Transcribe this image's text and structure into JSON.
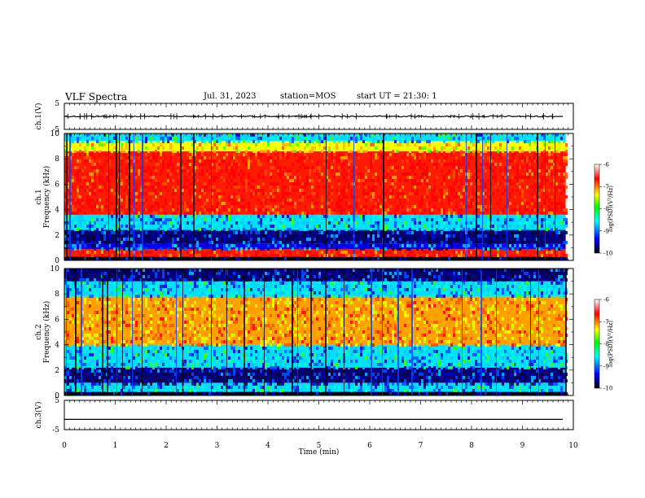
{
  "header": {
    "title": "VLF Spectra",
    "date": "Jul. 31, 2023",
    "station": "station=MOS",
    "start": "start UT = 21:30: 1"
  },
  "chart_data": [
    {
      "type": "line",
      "name": "ch1-waveform",
      "ylabel": "ch.1(V)",
      "ylim": [
        -5,
        5
      ],
      "yticks": [
        "5",
        "-5"
      ],
      "baseline_v": 0.0,
      "xlim": [
        0,
        10
      ]
    },
    {
      "type": "heatmap",
      "name": "ch1-spectrogram",
      "ylabel": "ch.1\nFrequency (kHz)",
      "ylim": [
        0,
        10
      ],
      "yticks": [
        "0",
        "2",
        "4",
        "6",
        "8",
        "10"
      ],
      "xlim": [
        0,
        9.85
      ],
      "intensity_bands": [
        {
          "f_low": 0.0,
          "f_high": 0.3,
          "level": "black"
        },
        {
          "f_low": 0.3,
          "f_high": 0.9,
          "level": "red"
        },
        {
          "f_low": 0.9,
          "f_high": 1.3,
          "level": "blue"
        },
        {
          "f_low": 1.3,
          "f_high": 2.4,
          "level": "dark blue"
        },
        {
          "f_low": 2.4,
          "f_high": 3.6,
          "level": "cyan"
        },
        {
          "f_low": 3.6,
          "f_high": 8.6,
          "level": "red"
        },
        {
          "f_low": 8.6,
          "f_high": 9.4,
          "level": "yellow"
        },
        {
          "f_low": 9.4,
          "f_high": 10.0,
          "level": "cyan"
        }
      ],
      "colorbar": {
        "label": "log(PSD)(V²/Hz)",
        "ticks": [
          "-6",
          "-7",
          "-8",
          "-9",
          "-10"
        ],
        "range": [
          -10,
          -6
        ],
        "colors": [
          "#000000",
          "#0000ff",
          "#00ffff",
          "#00ff00",
          "#ffff00",
          "#ff0000",
          "#ffffff"
        ]
      }
    },
    {
      "type": "heatmap",
      "name": "ch2-spectrogram",
      "ylabel": "ch.2\nFrequency (kHz)",
      "ylim": [
        0,
        10
      ],
      "yticks": [
        "0",
        "2",
        "4",
        "6",
        "8",
        "10"
      ],
      "xlim": [
        0,
        9.85
      ],
      "intensity_bands": [
        {
          "f_low": 0.0,
          "f_high": 0.3,
          "level": "black"
        },
        {
          "f_low": 0.3,
          "f_high": 1.0,
          "level": "cyan"
        },
        {
          "f_low": 1.0,
          "f_high": 2.2,
          "level": "dark blue"
        },
        {
          "f_low": 2.2,
          "f_high": 4.0,
          "level": "cyan"
        },
        {
          "f_low": 4.0,
          "f_high": 7.8,
          "level": "orange"
        },
        {
          "f_low": 7.8,
          "f_high": 9.0,
          "level": "cyan"
        },
        {
          "f_low": 9.0,
          "f_high": 10.0,
          "level": "dark blue"
        }
      ],
      "colorbar": {
        "label": "log(PSD)(V²/Hz)",
        "ticks": [
          "-6",
          "-7",
          "-8",
          "-9",
          "-10"
        ],
        "range": [
          -10,
          -6
        ],
        "colors": [
          "#000000",
          "#0000ff",
          "#00ffff",
          "#00ff00",
          "#ffff00",
          "#ff0000",
          "#ffffff"
        ]
      }
    },
    {
      "type": "line",
      "name": "ch3-waveform",
      "ylabel": "ch.3(V)",
      "ylim": [
        -5,
        5
      ],
      "yticks": [
        "5",
        "-5"
      ],
      "baseline_v": -1.5,
      "xlim": [
        0,
        10
      ]
    }
  ],
  "xaxis": {
    "label": "Time (min)",
    "ticks": [
      "0",
      "1",
      "2",
      "3",
      "4",
      "5",
      "6",
      "7",
      "8",
      "9",
      "10"
    ],
    "range": [
      0,
      10
    ]
  }
}
